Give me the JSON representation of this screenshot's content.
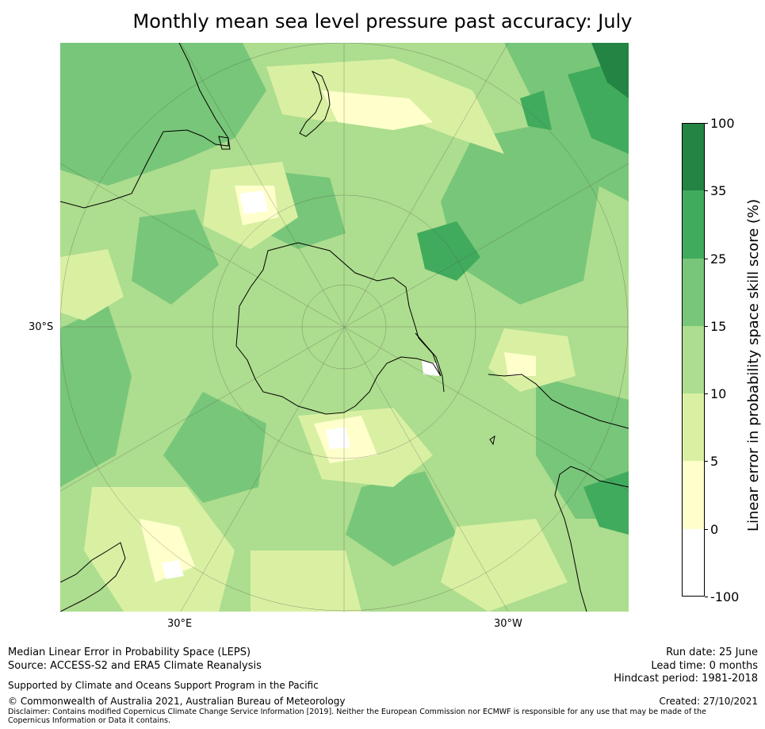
{
  "title": "Monthly mean sea level pressure past accuracy: July",
  "map": {
    "projection": "south polar stereographic",
    "lon_labels": [
      "30°E",
      "30°W"
    ],
    "lat_label": "30°S",
    "palette": {
      "neg": "#ffffff",
      "b0_5": "#ffffcc",
      "b5_10": "#d9f0a3",
      "b10_15": "#addd8e",
      "b15_25": "#78c679",
      "b25_35": "#41ab5d",
      "b35_100": "#238443",
      "coast": "#000000"
    }
  },
  "colorbar": {
    "label": "Linear error in probability space skill score (%)",
    "ticks": [
      "100",
      "35",
      "25",
      "15",
      "10",
      "5",
      "0",
      "-100"
    ],
    "colors": [
      "#238443",
      "#41ab5d",
      "#78c679",
      "#addd8e",
      "#d9f0a3",
      "#ffffcc",
      "#ffffff"
    ]
  },
  "footer": {
    "left_line1": "Median Linear Error in Probability Space (LEPS)",
    "left_line2": "Source: ACCESS-S2 and ERA5 Climate Reanalysis",
    "support": "Supported by Climate and Oceans Support Program in the Pacific",
    "copyright": "© Commonwealth of Australia 2021, Australian Bureau of Meteorology",
    "disclaimer": "Disclaimer: Contains modified Copernicus Climate Change Service Information [2019]. Neither the European Commission nor ECMWF is responsible for any use that may be made of the Copernicus Information or Data it contains.",
    "run_date": "Run date: 25 June",
    "lead_time": "Lead time: 0 months",
    "hindcast": "Hindcast period: 1981-2018",
    "created": "Created: 27/10/2021"
  }
}
